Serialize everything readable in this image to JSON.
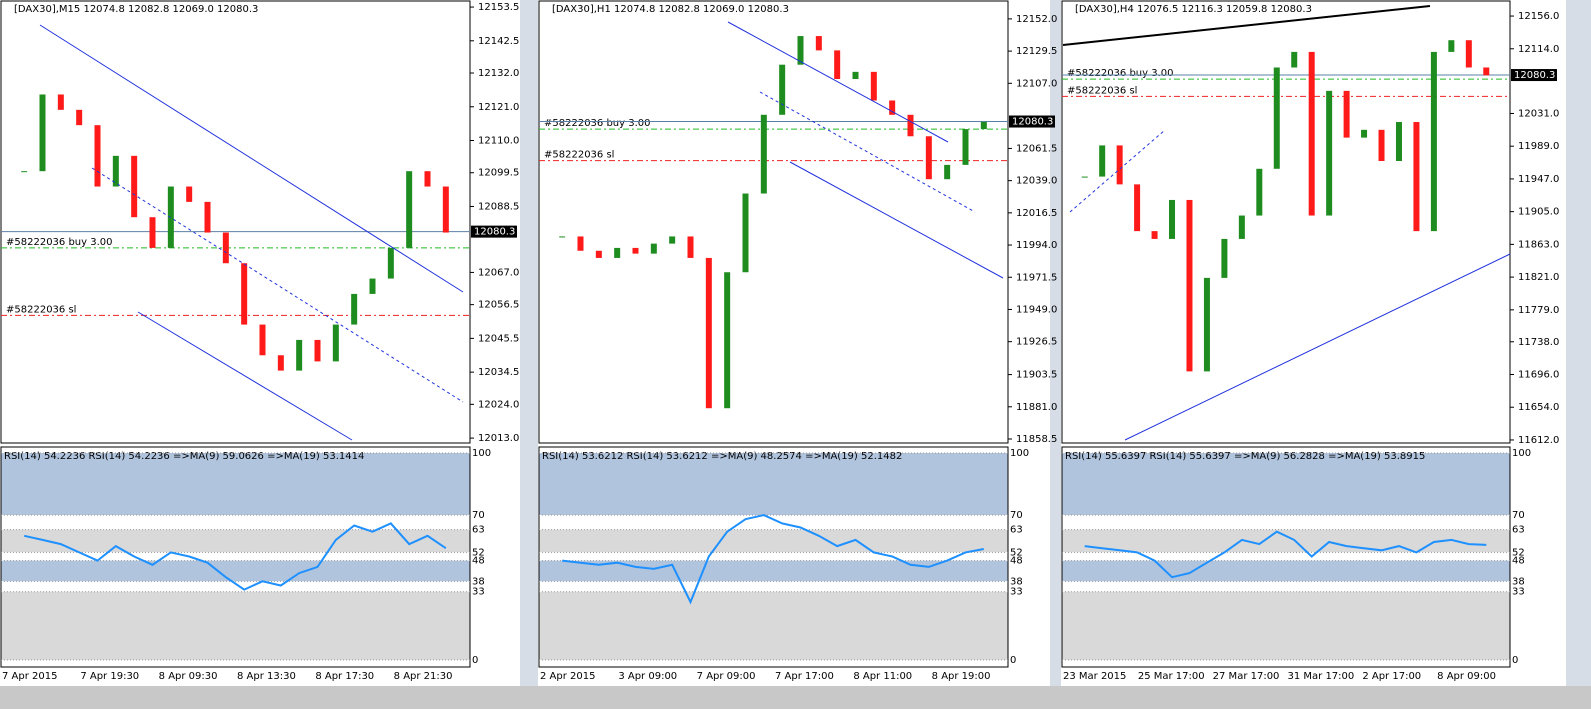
{
  "current_price": 12080.3,
  "orders": {
    "buy_label": "#58222036 buy 3.00",
    "buy_price": 12075,
    "sl_label": "#58222036 sl",
    "sl_price": 12053
  },
  "rsi_lim": [
    0,
    100
  ],
  "rsi_ticks": [
    100,
    70,
    63,
    52,
    48,
    38,
    33,
    0
  ],
  "panels": [
    {
      "header": "[DAX30],M15  12074.8 12082.8 12069.0 12080.3",
      "rsi_header": "RSI(14) 54.2236  RSI(14) 54.2236  =>MA(9) 59.0626  =>MA(19) 53.1414",
      "ylim": [
        12011.4,
        12155.8
      ],
      "yticks": [
        12153.5,
        12142.5,
        {
          "value": 12132,
          "label": "12132.0"
        },
        {
          "value": 12121,
          "label": "12121.0"
        },
        {
          "value": 12110,
          "label": "12110.0"
        },
        12099.5,
        12088.5,
        {
          "value": 12067,
          "label": "12067.0"
        },
        12056.5,
        12045.5,
        12034.5,
        {
          "value": 12024,
          "label": "12024.0"
        },
        {
          "value": 12013,
          "label": "12013.0"
        }
      ],
      "time_labels": [
        "7 Apr 2015",
        "7 Apr 19:30",
        "8 Apr 09:30",
        "8 Apr 13:30",
        "8 Apr 17:30",
        "8 Apr 21:30"
      ],
      "closes": [
        12100,
        12125,
        12120,
        12115,
        12095,
        12105,
        12085,
        12075,
        12095,
        12090,
        12080,
        12070,
        12050,
        12040,
        12035,
        12045,
        12038,
        12050,
        12060,
        12065,
        12075,
        12100,
        12095,
        12080
      ],
      "rsi": [
        60,
        58,
        56,
        52,
        48,
        55,
        50,
        46,
        52,
        50,
        47,
        40,
        34,
        38,
        36,
        42,
        45,
        58,
        65,
        62,
        66,
        56,
        60,
        54
      ]
    },
    {
      "header": "[DAX30],H1  12074.8 12082.8 12069.0 12080.3",
      "rsi_header": "RSI(14) 53.6212  RSI(14) 53.6212  =>MA(9) 48.2574  =>MA(19) 52.1482",
      "ylim": [
        11855.7,
        12165.2
      ],
      "yticks": [
        {
          "value": 12152,
          "label": "12152.0"
        },
        12129.5,
        {
          "value": 12107,
          "label": "12107.0"
        },
        12061.5,
        {
          "value": 12039,
          "label": "12039.0"
        },
        12016.5,
        {
          "value": 11994,
          "label": "11994.0"
        },
        11971.5,
        {
          "value": 11949,
          "label": "11949.0"
        },
        11926.5,
        11903.5,
        {
          "value": 11881,
          "label": "11881.0"
        },
        11858.5
      ],
      "time_labels": [
        "2 Apr 2015",
        "3 Apr 09:00",
        "7 Apr 09:00",
        "7 Apr 17:00",
        "8 Apr 11:00",
        "8 Apr 19:00"
      ],
      "closes": [
        12000,
        11990,
        11985,
        11992,
        11988,
        11995,
        12000,
        11985,
        11880,
        11975,
        12030,
        12085,
        12120,
        12140,
        12130,
        12110,
        12115,
        12095,
        12085,
        12070,
        12040,
        12050,
        12075,
        12080
      ],
      "rsi": [
        48,
        47,
        46,
        47,
        45,
        44,
        46,
        28,
        50,
        62,
        68,
        70,
        66,
        64,
        60,
        55,
        58,
        52,
        50,
        46,
        45,
        48,
        52,
        53.6
      ]
    },
    {
      "header": "[DAX30],H4  12076.5 12116.3 12059.8 12080.3",
      "rsi_header": "RSI(14) 55.6397  RSI(14) 55.6397  =>MA(9) 56.2828  =>MA(19) 53.8915",
      "ylim": [
        11608.1,
        12176.6
      ],
      "yticks": [
        {
          "value": 12156,
          "label": "12156.0"
        },
        {
          "value": 12114,
          "label": "12114.0"
        },
        {
          "value": 12031,
          "label": "12031.0"
        },
        {
          "value": 11989,
          "label": "11989.0"
        },
        {
          "value": 11947,
          "label": "11947.0"
        },
        {
          "value": 11905,
          "label": "11905.0"
        },
        {
          "value": 11863,
          "label": "11863.0"
        },
        {
          "value": 11821,
          "label": "11821.0"
        },
        {
          "value": 11779,
          "label": "11779.0"
        },
        {
          "value": 11738,
          "label": "11738.0"
        },
        {
          "value": 11696,
          "label": "11696.0"
        },
        {
          "value": 11654,
          "label": "11654.0"
        },
        {
          "value": 11612,
          "label": "11612.0"
        }
      ],
      "time_labels": [
        "23 Mar 2015",
        "25 Mar 17:00",
        "27 Mar 17:00",
        "31 Mar 17:00",
        "2 Apr 17:00",
        "8 Apr 09:00"
      ],
      "closes": [
        11950,
        11990,
        11940,
        11880,
        11870,
        11920,
        11700,
        11820,
        11870,
        11900,
        11960,
        12090,
        12110,
        11900,
        12060,
        12000,
        12010,
        11970,
        12020,
        11880,
        12110,
        12125,
        12090,
        12080
      ],
      "rsi": [
        55,
        54,
        53,
        52,
        48,
        40,
        42,
        47,
        52,
        58,
        56,
        62,
        58,
        50,
        57,
        55,
        54,
        53,
        55,
        52,
        57,
        58,
        56,
        55.6
      ]
    }
  ]
}
